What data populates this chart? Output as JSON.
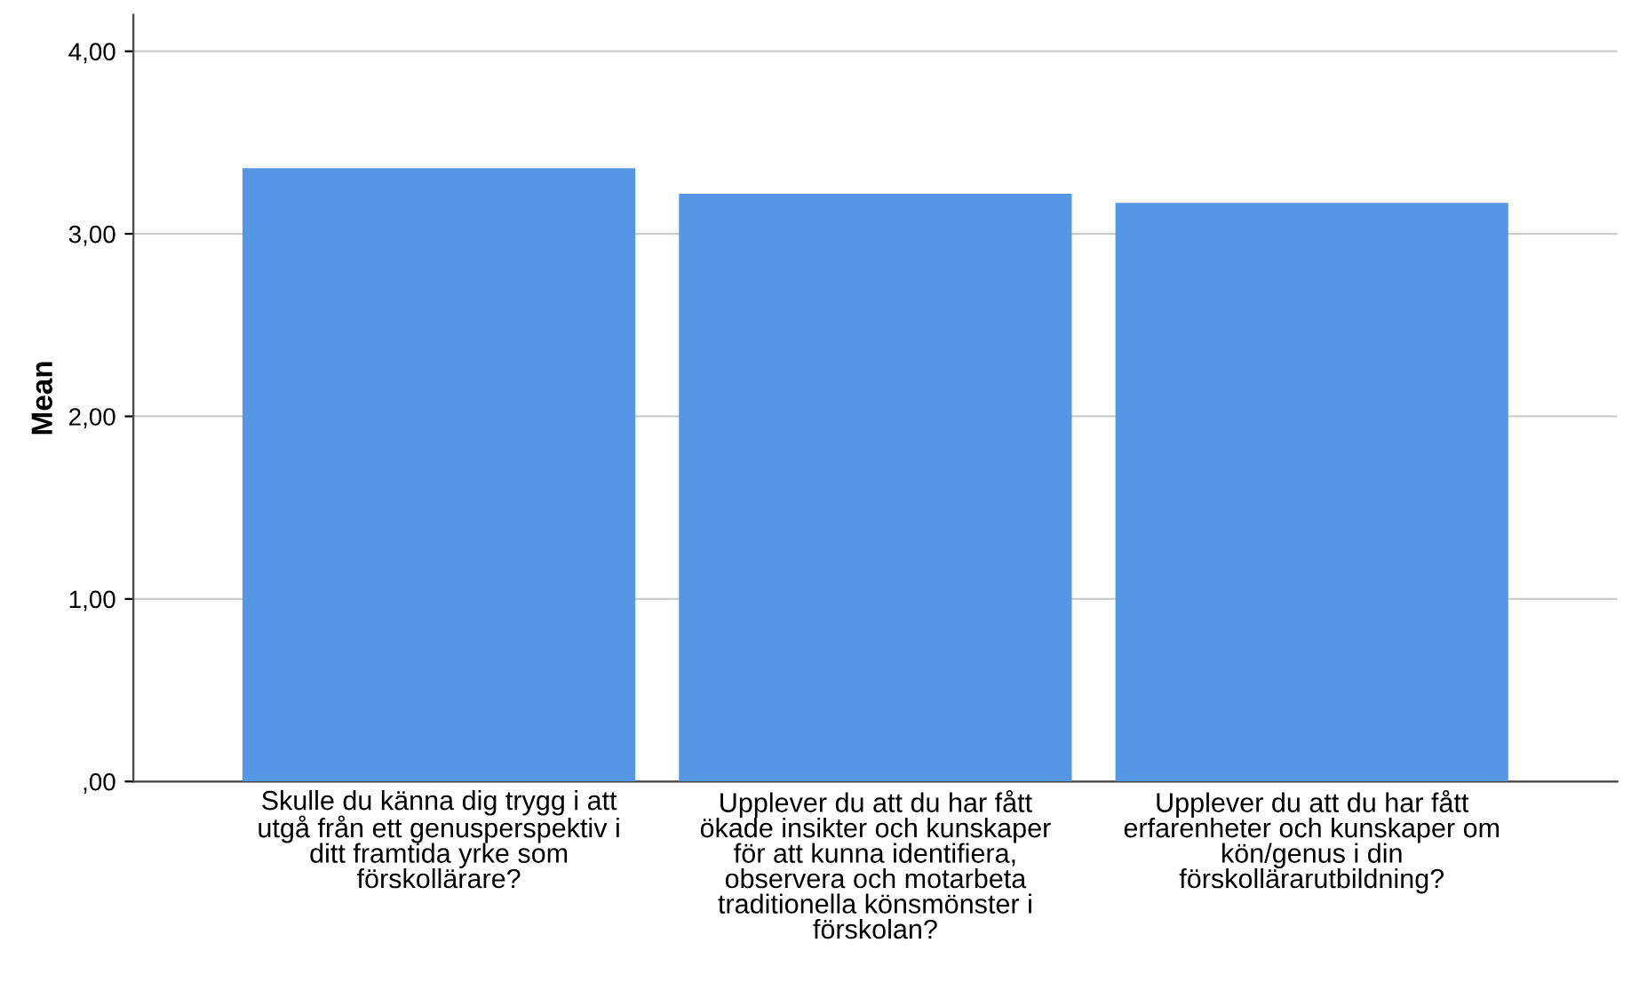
{
  "chart_data": {
    "type": "bar",
    "ylabel": "Mean",
    "categories": [
      "Skulle du känna dig trygg i att\nutgå från ett genusperspektiv i\nditt framtida yrke som\nförskollärare?",
      "Upplever du att du har fått\nökade insikter och kunskaper\nför att kunna identifiera,\nobservera och motarbeta\ntraditionella könsmönster i\nförskolan?",
      "Upplever du att du har fått\nerfarenheter och kunskaper om\nkön/genus i din\nförskollärarutbildning?"
    ],
    "values": [
      3.36,
      3.22,
      3.17
    ],
    "color": "#5597e4",
    "ylim": [
      0,
      4.2
    ],
    "yticks": [
      {
        "value": 0,
        "label": ",00"
      },
      {
        "value": 1,
        "label": "1,00"
      },
      {
        "value": 2,
        "label": "2,00"
      },
      {
        "value": 3,
        "label": "3,00"
      },
      {
        "value": 4,
        "label": "4,00"
      }
    ],
    "grid": "y"
  }
}
